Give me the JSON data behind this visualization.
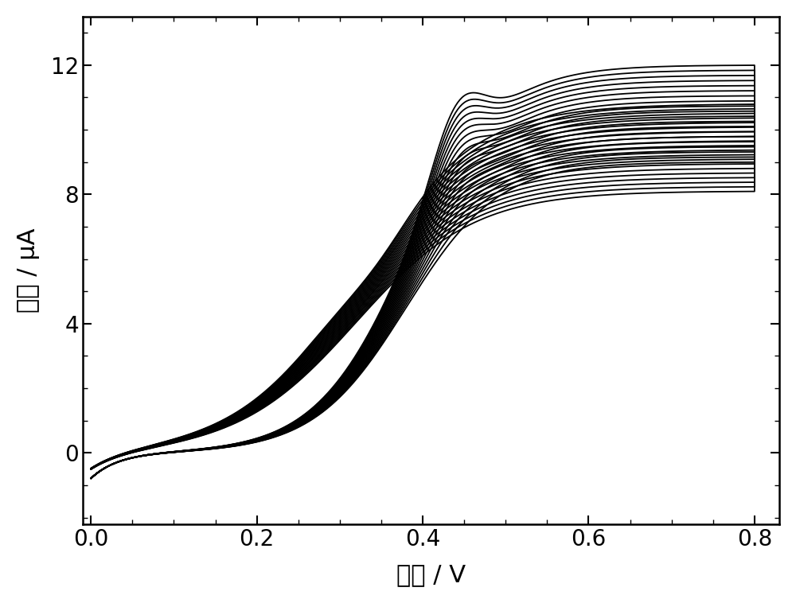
{
  "xlabel": "电位 / V",
  "ylabel": "电流 / μA",
  "xlim": [
    -0.01,
    0.83
  ],
  "ylim": [
    -2.2,
    13.5
  ],
  "xticks": [
    0.0,
    0.2,
    0.4,
    0.6,
    0.8
  ],
  "yticks": [
    0,
    4,
    8,
    12
  ],
  "xlabel_fontsize": 22,
  "ylabel_fontsize": 22,
  "tick_fontsize": 20,
  "n_cycles": 20,
  "background_color": "#ffffff",
  "line_color": "#000000",
  "linewidth": 1.3
}
